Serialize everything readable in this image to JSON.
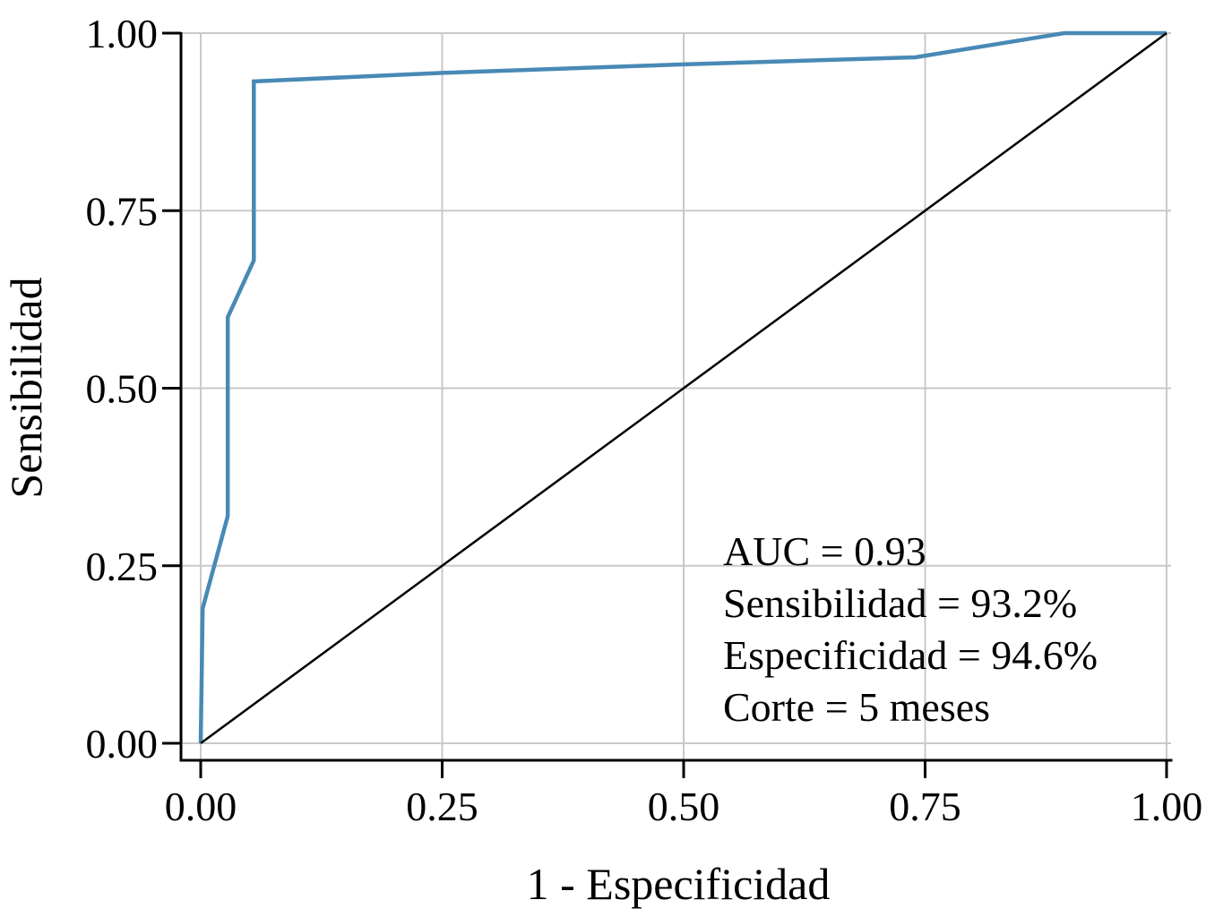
{
  "figure": {
    "background": "#ffffff"
  },
  "chart_data": {
    "type": "line",
    "title": "",
    "xlabel": "1 - Especificidad",
    "ylabel": "Sensibilidad",
    "xlim": [
      0,
      1
    ],
    "ylim": [
      0,
      1
    ],
    "x_ticks": [
      "0.00",
      "0.25",
      "0.50",
      "0.75",
      "1.00"
    ],
    "y_ticks": [
      "0.00",
      "0.25",
      "0.50",
      "0.75",
      "1.00"
    ],
    "grid": true,
    "grid_color": "#c9c9c9",
    "axis_color": "#000000",
    "legend": "none",
    "series": [
      {
        "name": "roc-curve",
        "color": "#4889b5",
        "width": 4.5,
        "points": [
          [
            0.0,
            0.0
          ],
          [
            0.002,
            0.19
          ],
          [
            0.028,
            0.32
          ],
          [
            0.028,
            0.6
          ],
          [
            0.055,
            0.68
          ],
          [
            0.055,
            0.932
          ],
          [
            0.25,
            0.944
          ],
          [
            0.5,
            0.956
          ],
          [
            0.74,
            0.966
          ],
          [
            0.894,
            1.0
          ],
          [
            1.0,
            1.0
          ]
        ]
      },
      {
        "name": "reference-diagonal",
        "color": "#000000",
        "width": 2.5,
        "points": [
          [
            0.0,
            0.0
          ],
          [
            1.0,
            1.0
          ]
        ]
      }
    ],
    "annotations": {
      "lines": [
        "AUC = 0.93",
        "Sensibilidad = 93.2%",
        "Especificidad = 94.6%",
        "Corte = 5 meses"
      ]
    },
    "stats": {
      "auc": 0.93,
      "sensitivity_pct": 93.2,
      "specificity_pct": 94.6,
      "cutoff": "5 meses"
    }
  }
}
